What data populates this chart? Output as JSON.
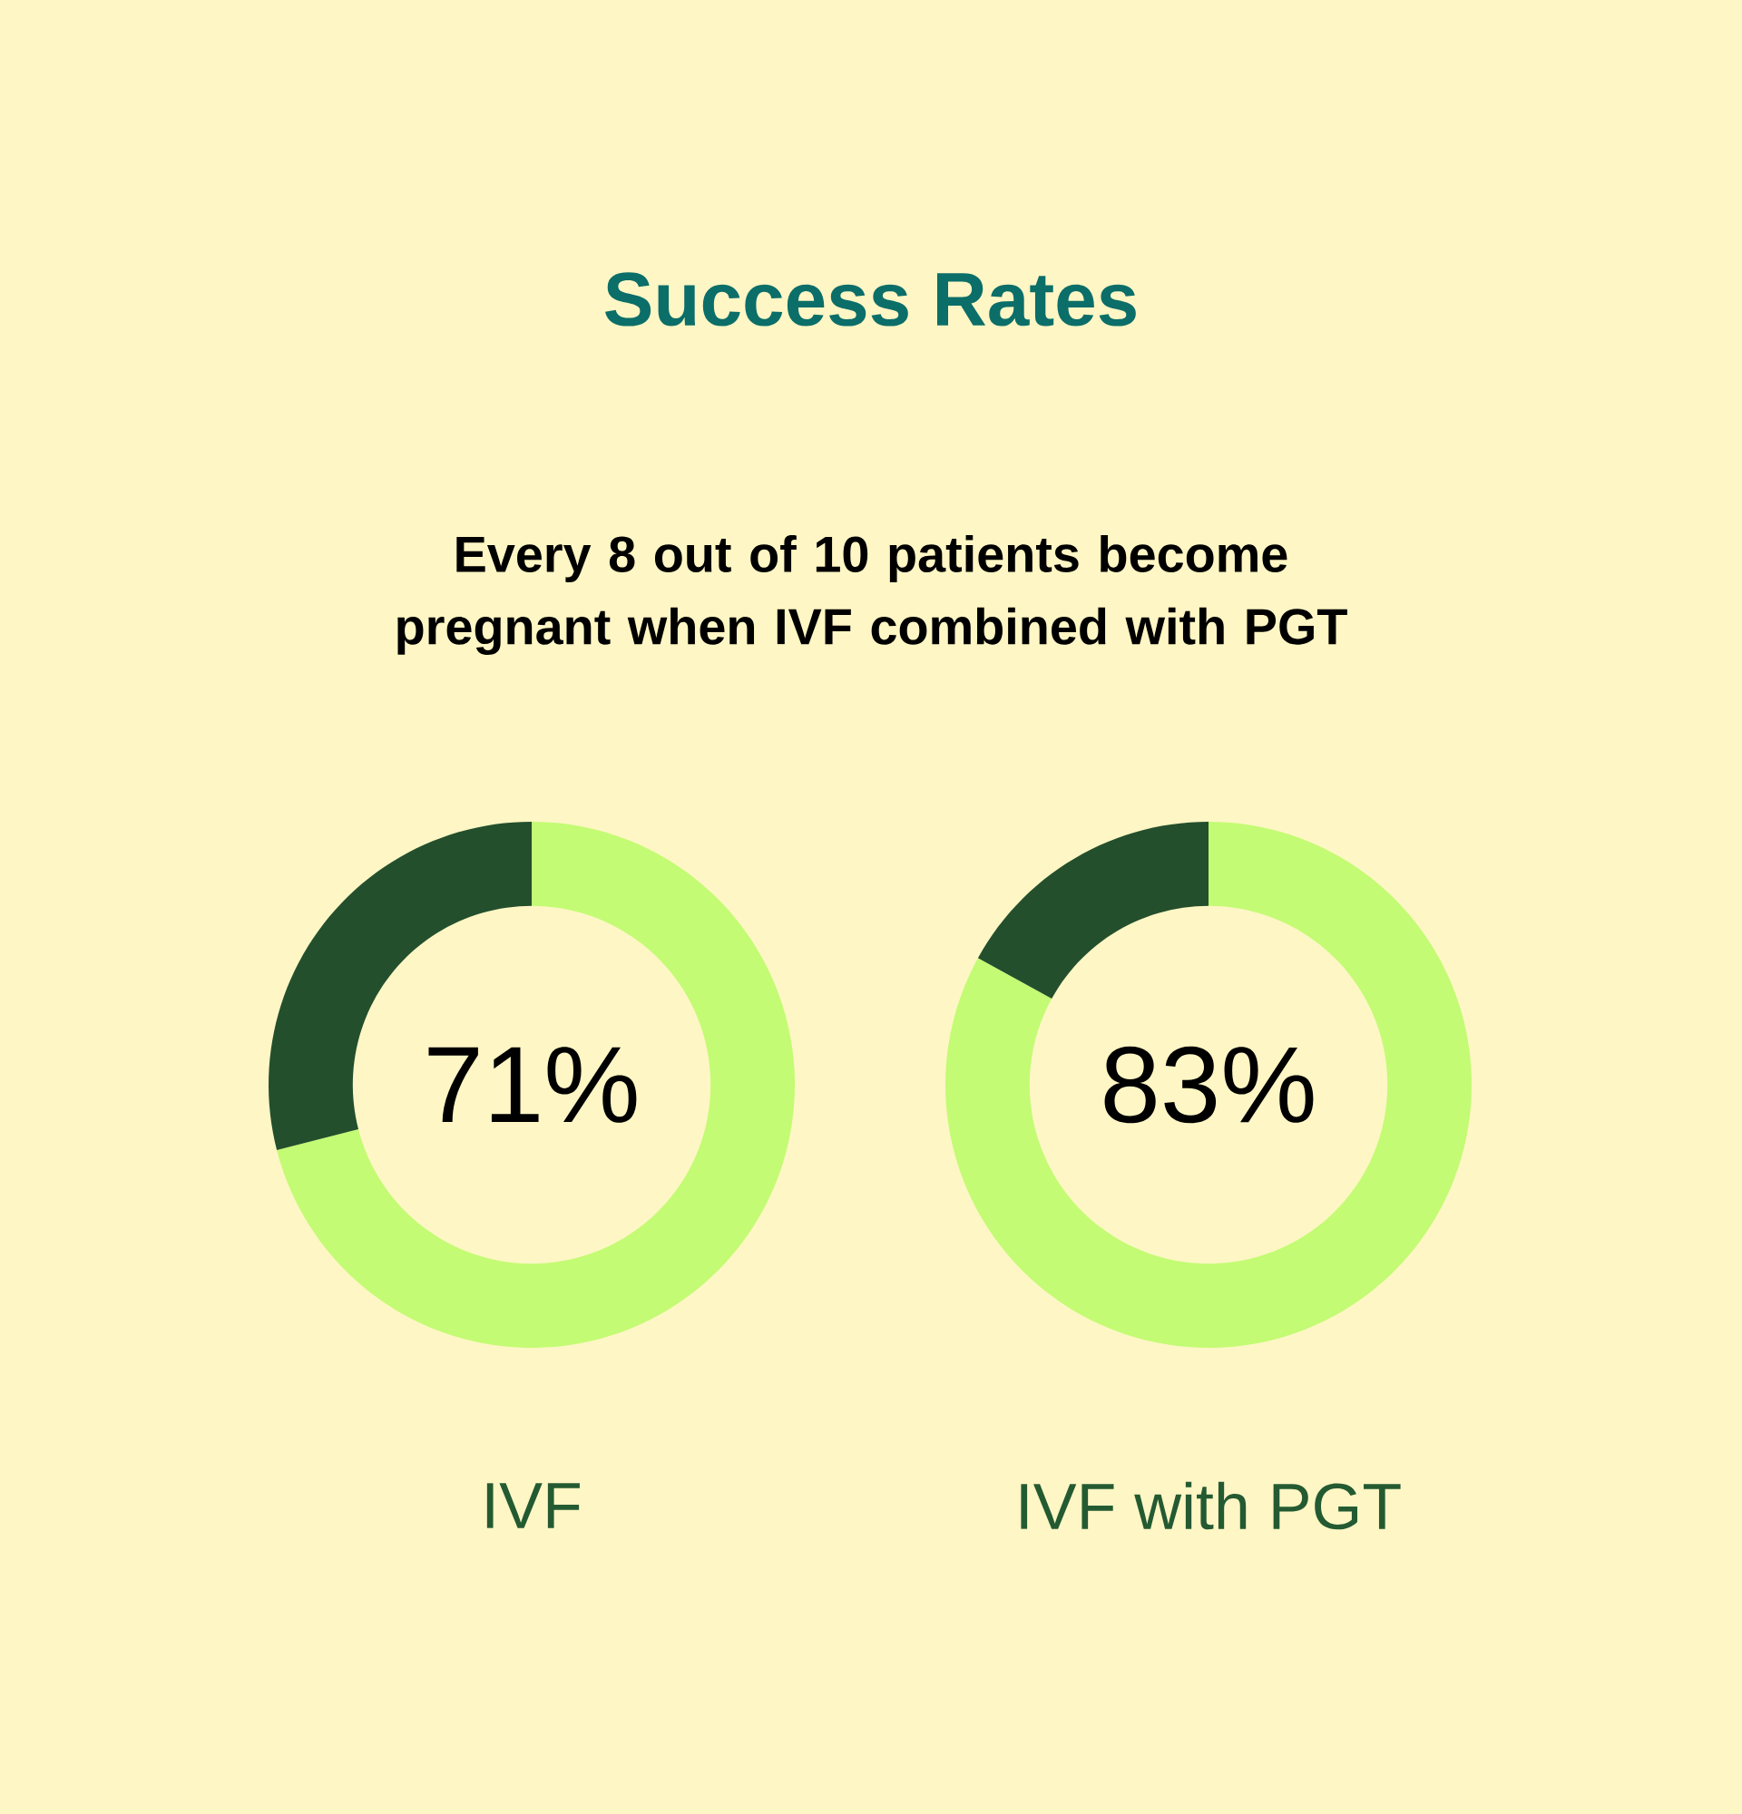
{
  "chart_data": [
    {
      "type": "donut",
      "title": "Success Rates",
      "subtitle": "Every 8 out of 10 patients become pregnant when IVF combined with PGT",
      "xlabel": "IVF",
      "categories": [
        null,
        null
      ],
      "values": [
        71,
        29
      ],
      "colors": [
        "#c3fb74",
        "#234f2d"
      ],
      "value_labels": [
        "71%",
        null
      ]
    },
    {
      "type": "donut",
      "xlabel": "IVF with PGT",
      "categories": [
        null,
        null
      ],
      "values": [
        83,
        17
      ],
      "colors": [
        "#c3fb74",
        "#234f2d"
      ],
      "value_labels": [
        "83%",
        null
      ]
    }
  ]
}
